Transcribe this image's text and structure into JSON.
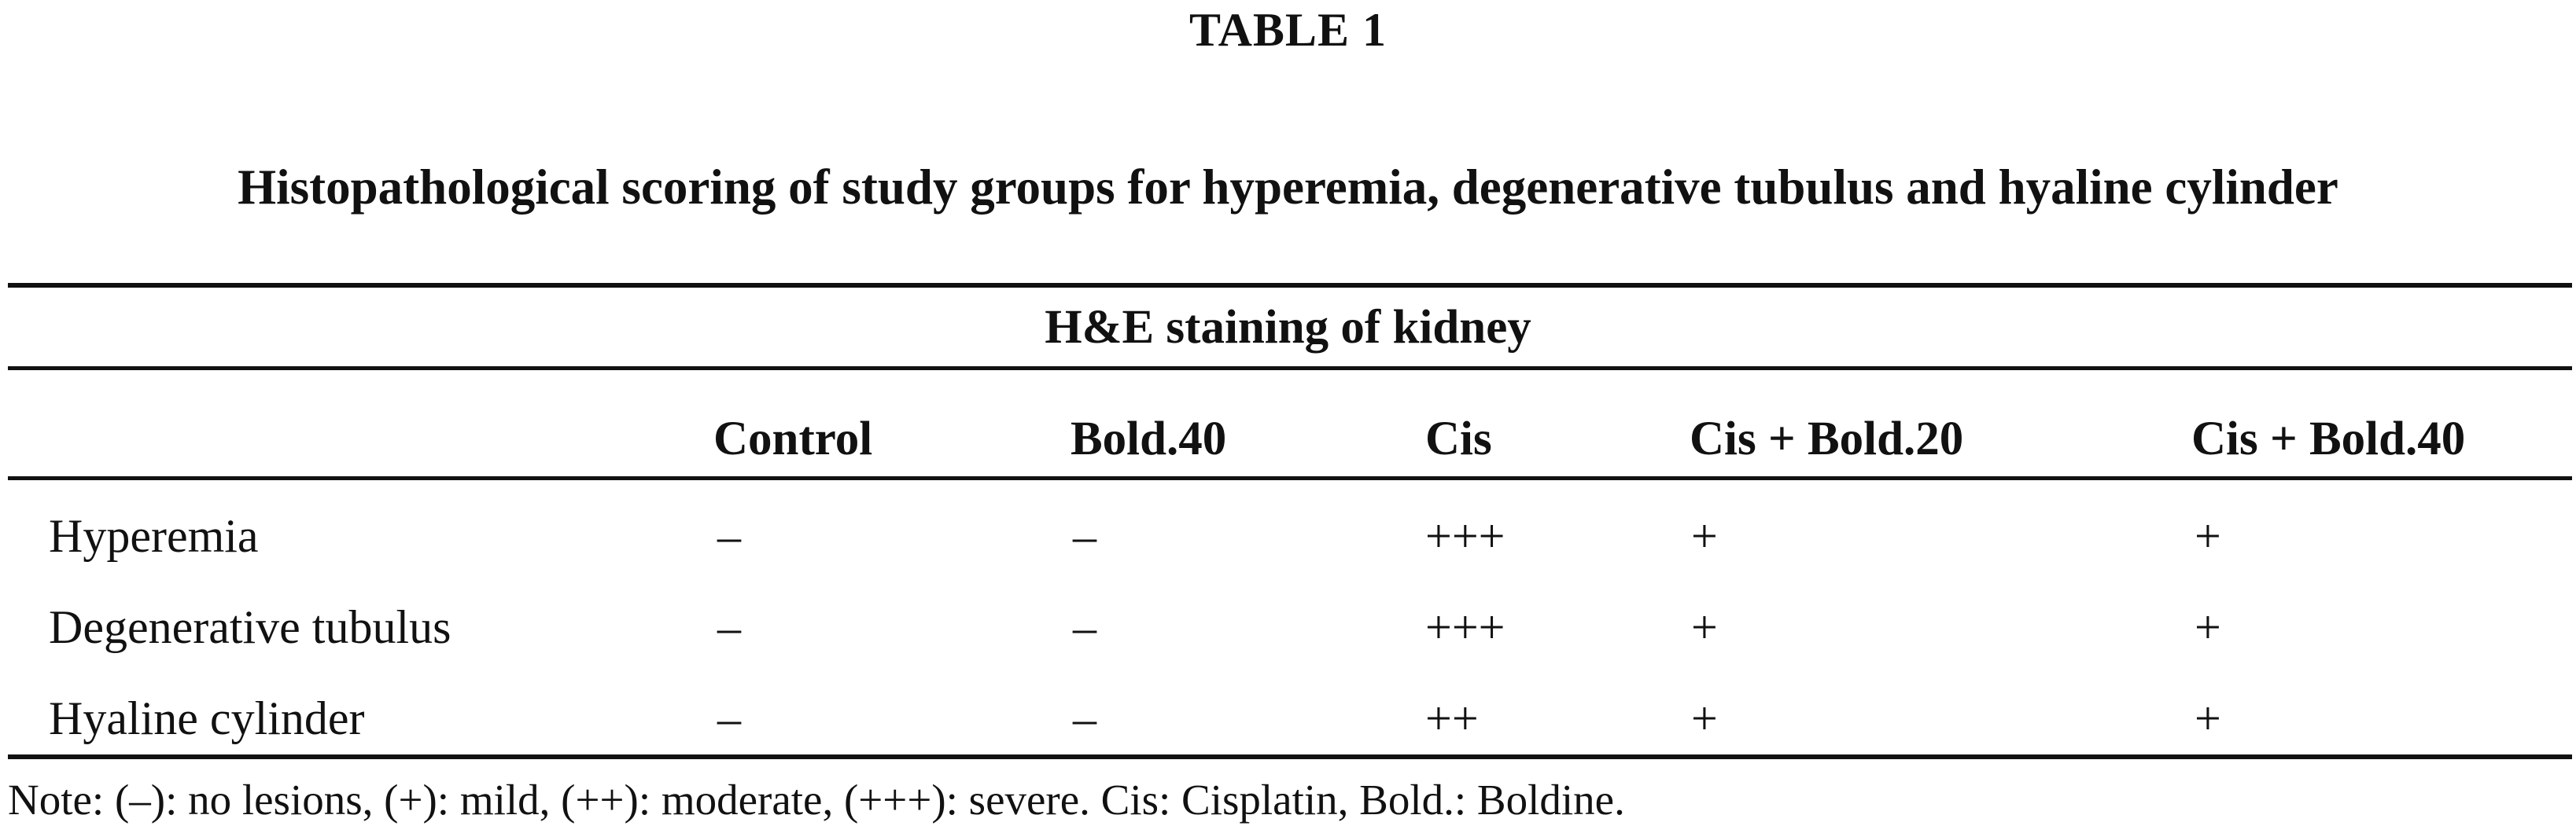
{
  "table_label": "TABLE 1",
  "caption": "Histopathological scoring of study groups for hyperemia, degenerative tubulus and hyaline cylinder",
  "spanner": "H&E staining of kidney",
  "columns": [
    "",
    "Control",
    "Bold.40",
    "Cis",
    "Cis + Bold.20",
    "Cis + Bold.40"
  ],
  "rows": [
    {
      "label": "Hyperemia",
      "values": [
        "–",
        "–",
        "+++",
        "+",
        "+"
      ]
    },
    {
      "label": "Degenerative tubulus",
      "values": [
        "–",
        "–",
        "+++",
        "+",
        "+"
      ]
    },
    {
      "label": "Hyaline cylinder",
      "values": [
        "–",
        "–",
        "++",
        "+",
        "+"
      ]
    }
  ],
  "note": "Note: (–): no lesions, (+): mild, (++): moderate, (+++): severe. Cis: Cisplatin, Bold.: Boldine."
}
